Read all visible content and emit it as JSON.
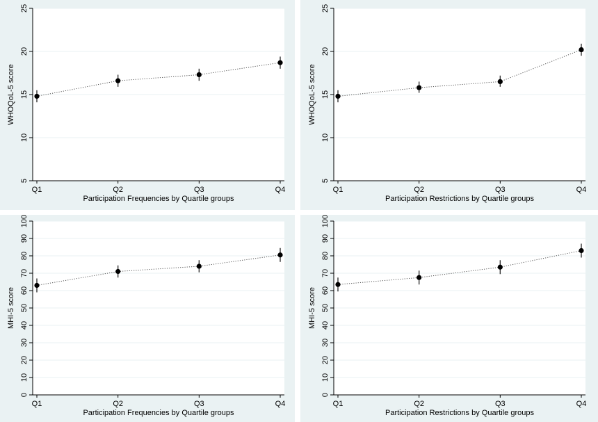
{
  "chart_data": [
    {
      "type": "scatter",
      "categories": [
        "Q1",
        "Q2",
        "Q3",
        "Q4"
      ],
      "values": [
        14.8,
        16.6,
        17.3,
        18.7
      ],
      "ci_low": [
        14.1,
        15.9,
        16.6,
        18.0
      ],
      "ci_high": [
        15.5,
        17.3,
        18.0,
        19.4
      ],
      "xlabel": "Participation Frequencies by Quartile groups",
      "ylabel": "WHOQoL-5 score",
      "ylim": [
        5,
        25
      ],
      "yticks": [
        5,
        10,
        15,
        20,
        25
      ],
      "grid": true,
      "connected": true
    },
    {
      "type": "scatter",
      "categories": [
        "Q1",
        "Q2",
        "Q3",
        "Q4"
      ],
      "values": [
        14.8,
        15.8,
        16.5,
        20.2
      ],
      "ci_low": [
        14.1,
        15.2,
        15.9,
        19.5
      ],
      "ci_high": [
        15.5,
        16.5,
        17.2,
        20.9
      ],
      "xlabel": "Participation Restrictions by Quartile groups",
      "ylabel": "WHOQoL-5 score",
      "ylim": [
        5,
        25
      ],
      "yticks": [
        5,
        10,
        15,
        20,
        25
      ],
      "grid": true,
      "connected": true
    },
    {
      "type": "scatter",
      "categories": [
        "Q1",
        "Q2",
        "Q3",
        "Q4"
      ],
      "values": [
        63,
        71,
        74,
        80.5
      ],
      "ci_low": [
        59,
        67.5,
        70.5,
        76.5
      ],
      "ci_high": [
        67,
        74.5,
        77.5,
        84.5
      ],
      "xlabel": "Participation Frequencies by Quartile groups",
      "ylabel": "MHI-5 score",
      "ylim": [
        0,
        100
      ],
      "yticks": [
        0,
        10,
        20,
        30,
        40,
        50,
        60,
        70,
        80,
        90,
        100
      ],
      "grid": true,
      "connected": true
    },
    {
      "type": "scatter",
      "categories": [
        "Q1",
        "Q2",
        "Q3",
        "Q4"
      ],
      "values": [
        63.5,
        67.5,
        73.5,
        83
      ],
      "ci_low": [
        59.5,
        63.5,
        69.5,
        79
      ],
      "ci_high": [
        67.5,
        71.5,
        77.5,
        87
      ],
      "xlabel": "Participation Restrictions by Quartile groups",
      "ylabel": "MHI-5 score",
      "ylim": [
        0,
        100
      ],
      "yticks": [
        0,
        10,
        20,
        30,
        40,
        50,
        60,
        70,
        80,
        90,
        100
      ],
      "grid": true,
      "connected": true
    }
  ]
}
